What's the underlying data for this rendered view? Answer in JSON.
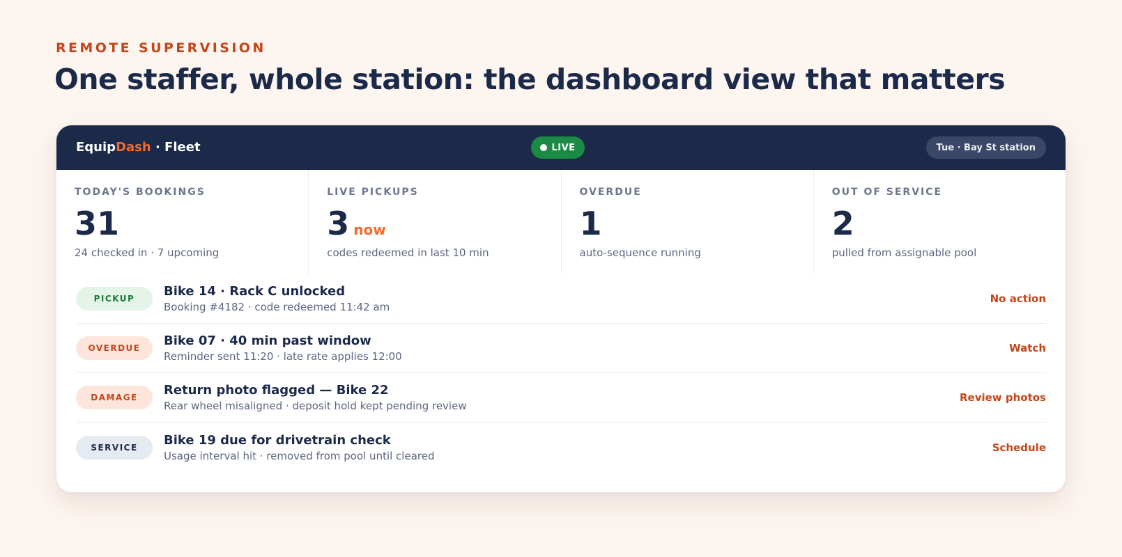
{
  "eyebrow": "REMOTE SUPERVISION",
  "headline": "One staffer, whole station: the dashboard view that matters",
  "topbar": {
    "brand_part1": "Equip",
    "brand_part2": "Dash",
    "brand_part3": " · Fleet",
    "live_label": "LIVE",
    "station_label": "Tue · Bay St station"
  },
  "kpis": [
    {
      "label": "TODAY'S BOOKINGS",
      "value": "31",
      "suffix": "",
      "sub": "24 checked in · 7 upcoming"
    },
    {
      "label": "LIVE PICKUPS",
      "value": "3",
      "suffix": "now",
      "sub": "codes redeemed in last 10 min"
    },
    {
      "label": "OVERDUE",
      "value": "1",
      "suffix": "",
      "sub": "auto-sequence running"
    },
    {
      "label": "OUT OF SERVICE",
      "value": "2",
      "suffix": "",
      "sub": "pulled from assignable pool"
    }
  ],
  "events": [
    {
      "tag": "PICKUP",
      "title": "Bike 14 · Rack C unlocked",
      "sub": "Booking #4182 · code redeemed 11:42 am",
      "action": "No action"
    },
    {
      "tag": "OVERDUE",
      "title": "Bike 07 · 40 min past window",
      "sub": "Reminder sent 11:20 · late rate applies 12:00",
      "action": "Watch"
    },
    {
      "tag": "DAMAGE",
      "title": "Return photo flagged — Bike 22",
      "sub": "Rear wheel misaligned · deposit hold kept pending review",
      "action": "Review photos"
    },
    {
      "tag": "SERVICE",
      "title": "Bike 19 due for drivetrain check",
      "sub": "Usage interval hit · removed from pool until cleared",
      "action": "Schedule"
    }
  ],
  "colors": {
    "navy": "#1c2a4a",
    "accent_orange": "#f26b2b",
    "accent_rust": "#c4461a",
    "live_green": "#1a8a44",
    "page_background": "#fdf5f0"
  }
}
